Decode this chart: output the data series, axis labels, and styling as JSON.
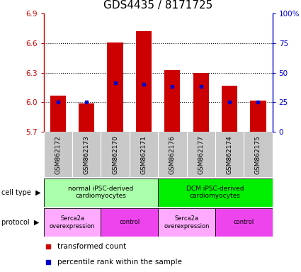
{
  "title": "GDS4435 / 8171725",
  "samples": [
    "GSM862172",
    "GSM862173",
    "GSM862170",
    "GSM862171",
    "GSM862176",
    "GSM862177",
    "GSM862174",
    "GSM862175"
  ],
  "bar_tops": [
    6.07,
    5.99,
    6.61,
    6.72,
    6.33,
    6.3,
    6.17,
    6.02
  ],
  "bar_bottom": 5.7,
  "blue_y": [
    6.0,
    6.0,
    6.2,
    6.18,
    6.16,
    6.16,
    6.0,
    6.0
  ],
  "ylim": [
    5.7,
    6.9
  ],
  "yticks_left": [
    5.7,
    6.0,
    6.3,
    6.6,
    6.9
  ],
  "yticks_right_vals": [
    0,
    25,
    50,
    75,
    100
  ],
  "yticks_right_pos": [
    5.7,
    6.0,
    6.3,
    6.6,
    6.9
  ],
  "bar_color": "#cc0000",
  "blue_color": "#0000cc",
  "bg_plot": "#ffffff",
  "bg_label": "#c8c8c8",
  "cell_type_groups": [
    {
      "label": "normal iPSC-derived\ncardiomyocytes",
      "start": 0,
      "end": 4,
      "color": "#aaffaa"
    },
    {
      "label": "DCM iPSC-derived\ncardiomyocytes",
      "start": 4,
      "end": 8,
      "color": "#00ee00"
    }
  ],
  "protocol_groups": [
    {
      "label": "Serca2a\noverexpression",
      "start": 0,
      "end": 2,
      "color": "#ffaaff"
    },
    {
      "label": "control",
      "start": 2,
      "end": 4,
      "color": "#ee44ee"
    },
    {
      "label": "Serca2a\noverexpression",
      "start": 4,
      "end": 6,
      "color": "#ffaaff"
    },
    {
      "label": "control",
      "start": 6,
      "end": 8,
      "color": "#ee44ee"
    }
  ],
  "legend_red_label": "transformed count",
  "legend_blue_label": "percentile rank within the sample",
  "left_axis_color": "#cc0000",
  "right_axis_color": "#0000cc",
  "title_fontsize": 11,
  "tick_fontsize": 7.5,
  "bar_width": 0.55
}
